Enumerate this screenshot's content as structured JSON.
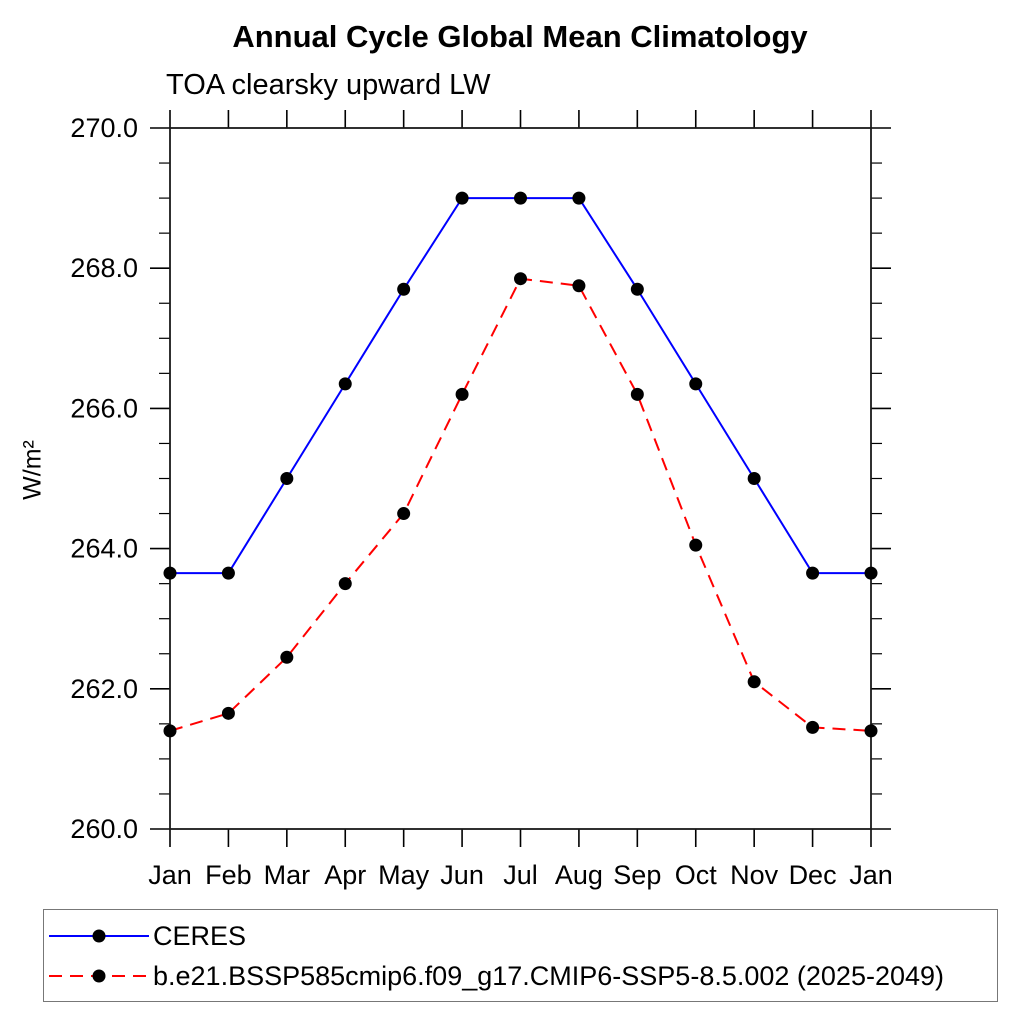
{
  "chart_data": {
    "type": "line",
    "title": "Annual Cycle Global Mean Climatology",
    "subtitle": "TOA clearsky upward LW",
    "xlabel": "",
    "ylabel": "W/m²",
    "x_tick_labels": [
      "Jan",
      "Feb",
      "Mar",
      "Apr",
      "May",
      "Jun",
      "Jul",
      "Aug",
      "Sep",
      "Oct",
      "Nov",
      "Dec",
      "Jan"
    ],
    "ylim": [
      260.0,
      270.0
    ],
    "y_major_step": 2.0,
    "y_minor_step": 0.5,
    "y_tick_labels": [
      "260.0",
      "262.0",
      "264.0",
      "266.0",
      "268.0",
      "270.0"
    ],
    "grid": false,
    "legend_position": "bottom-outside-box",
    "axis_color": "#000000",
    "series": [
      {
        "name": "CERES",
        "color": "#0000ff",
        "line_style": "solid",
        "marker": "filled-circle",
        "marker_color": "#000000",
        "values": [
          263.65,
          263.65,
          265.0,
          266.35,
          267.7,
          269.0,
          269.0,
          269.0,
          267.7,
          266.35,
          265.0,
          263.65,
          263.65
        ]
      },
      {
        "name": "b.e21.BSSP585cmip6.f09_g17.CMIP6-SSP5-8.5.002 (2025-2049)",
        "color": "#ff0000",
        "line_style": "dashed",
        "marker": "filled-circle",
        "marker_color": "#000000",
        "values": [
          261.4,
          261.65,
          262.45,
          263.5,
          264.5,
          266.2,
          267.85,
          267.75,
          266.2,
          264.05,
          262.1,
          261.45,
          261.4
        ]
      }
    ]
  }
}
